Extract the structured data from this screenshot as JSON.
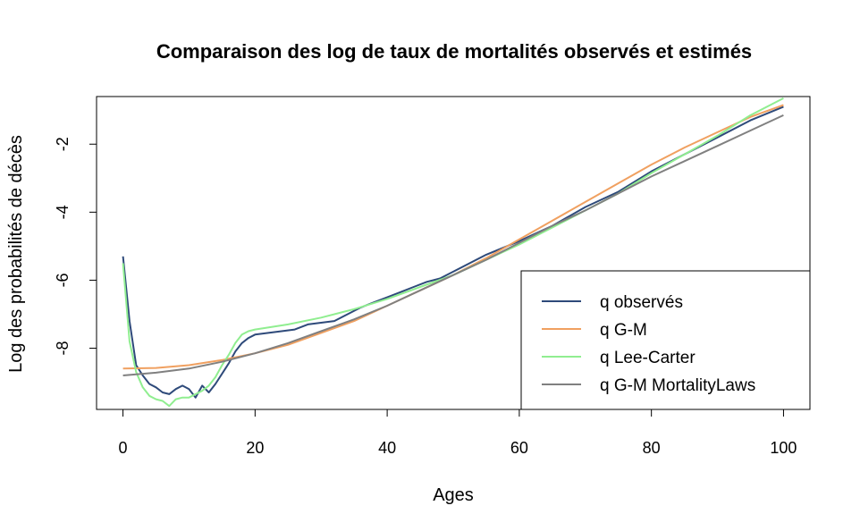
{
  "chart_data": {
    "type": "line",
    "title": "Comparaison des log de taux de mortalités observés et estimés",
    "xlabel": "Ages",
    "ylabel": "Log des probabilités de décès",
    "xlim": [
      -4,
      104
    ],
    "ylim": [
      -9.8,
      -0.6
    ],
    "xticks": [
      0,
      20,
      40,
      60,
      80,
      100
    ],
    "xtick_labels": [
      "0",
      "20",
      "40",
      "60",
      "80",
      "100"
    ],
    "yticks": [
      -8,
      -6,
      -4,
      -2
    ],
    "ytick_labels": [
      "-8",
      "-6",
      "-4",
      "-2"
    ],
    "grid": false,
    "legend_position": "bottom-right",
    "series": [
      {
        "name": "q observés",
        "color": "#2e4a7a",
        "points": [
          [
            0,
            -5.3
          ],
          [
            1,
            -7.2
          ],
          [
            2,
            -8.5
          ],
          [
            3,
            -8.8
          ],
          [
            4,
            -9.05
          ],
          [
            5,
            -9.15
          ],
          [
            6,
            -9.3
          ],
          [
            7,
            -9.35
          ],
          [
            8,
            -9.2
          ],
          [
            9,
            -9.1
          ],
          [
            10,
            -9.2
          ],
          [
            11,
            -9.45
          ],
          [
            12,
            -9.1
          ],
          [
            13,
            -9.3
          ],
          [
            14,
            -9.05
          ],
          [
            15,
            -8.75
          ],
          [
            16,
            -8.45
          ],
          [
            17,
            -8.1
          ],
          [
            18,
            -7.85
          ],
          [
            19,
            -7.7
          ],
          [
            20,
            -7.6
          ],
          [
            22,
            -7.55
          ],
          [
            24,
            -7.5
          ],
          [
            26,
            -7.45
          ],
          [
            28,
            -7.3
          ],
          [
            30,
            -7.25
          ],
          [
            32,
            -7.2
          ],
          [
            34,
            -7.0
          ],
          [
            36,
            -6.8
          ],
          [
            38,
            -6.65
          ],
          [
            40,
            -6.5
          ],
          [
            42,
            -6.35
          ],
          [
            44,
            -6.2
          ],
          [
            46,
            -6.05
          ],
          [
            48,
            -5.95
          ],
          [
            50,
            -5.75
          ],
          [
            55,
            -5.25
          ],
          [
            60,
            -4.85
          ],
          [
            65,
            -4.4
          ],
          [
            70,
            -3.85
          ],
          [
            75,
            -3.4
          ],
          [
            80,
            -2.8
          ],
          [
            85,
            -2.3
          ],
          [
            90,
            -1.8
          ],
          [
            95,
            -1.3
          ],
          [
            100,
            -0.9
          ]
        ]
      },
      {
        "name": "q G-M",
        "color": "#f0a060",
        "points": [
          [
            0,
            -8.6
          ],
          [
            5,
            -8.58
          ],
          [
            10,
            -8.5
          ],
          [
            15,
            -8.35
          ],
          [
            20,
            -8.15
          ],
          [
            25,
            -7.9
          ],
          [
            30,
            -7.55
          ],
          [
            35,
            -7.2
          ],
          [
            40,
            -6.75
          ],
          [
            45,
            -6.3
          ],
          [
            50,
            -5.85
          ],
          [
            55,
            -5.35
          ],
          [
            60,
            -4.8
          ],
          [
            65,
            -4.25
          ],
          [
            70,
            -3.7
          ],
          [
            75,
            -3.15
          ],
          [
            80,
            -2.6
          ],
          [
            85,
            -2.1
          ],
          [
            90,
            -1.65
          ],
          [
            95,
            -1.2
          ],
          [
            100,
            -0.85
          ]
        ]
      },
      {
        "name": "q Lee-Carter",
        "color": "#90ee90",
        "points": [
          [
            0,
            -5.5
          ],
          [
            1,
            -7.8
          ],
          [
            2,
            -8.7
          ],
          [
            3,
            -9.15
          ],
          [
            4,
            -9.4
          ],
          [
            5,
            -9.5
          ],
          [
            6,
            -9.55
          ],
          [
            7,
            -9.7
          ],
          [
            8,
            -9.5
          ],
          [
            9,
            -9.45
          ],
          [
            10,
            -9.45
          ],
          [
            11,
            -9.35
          ],
          [
            12,
            -9.25
          ],
          [
            13,
            -9.1
          ],
          [
            14,
            -8.85
          ],
          [
            15,
            -8.5
          ],
          [
            16,
            -8.2
          ],
          [
            17,
            -7.85
          ],
          [
            18,
            -7.6
          ],
          [
            19,
            -7.5
          ],
          [
            20,
            -7.45
          ],
          [
            25,
            -7.3
          ],
          [
            30,
            -7.1
          ],
          [
            35,
            -6.85
          ],
          [
            40,
            -6.55
          ],
          [
            45,
            -6.2
          ],
          [
            50,
            -5.85
          ],
          [
            55,
            -5.4
          ],
          [
            60,
            -4.95
          ],
          [
            65,
            -4.45
          ],
          [
            70,
            -3.95
          ],
          [
            75,
            -3.45
          ],
          [
            80,
            -2.85
          ],
          [
            85,
            -2.3
          ],
          [
            90,
            -1.75
          ],
          [
            95,
            -1.15
          ],
          [
            100,
            -0.65
          ]
        ]
      },
      {
        "name": "q G-M MortalityLaws",
        "color": "#808080",
        "points": [
          [
            0,
            -8.8
          ],
          [
            5,
            -8.72
          ],
          [
            10,
            -8.6
          ],
          [
            15,
            -8.4
          ],
          [
            20,
            -8.15
          ],
          [
            25,
            -7.85
          ],
          [
            30,
            -7.5
          ],
          [
            35,
            -7.15
          ],
          [
            40,
            -6.75
          ],
          [
            45,
            -6.3
          ],
          [
            50,
            -5.85
          ],
          [
            55,
            -5.4
          ],
          [
            60,
            -4.9
          ],
          [
            65,
            -4.4
          ],
          [
            70,
            -3.95
          ],
          [
            75,
            -3.45
          ],
          [
            80,
            -2.95
          ],
          [
            85,
            -2.5
          ],
          [
            90,
            -2.05
          ],
          [
            95,
            -1.6
          ],
          [
            100,
            -1.15
          ]
        ]
      }
    ]
  }
}
